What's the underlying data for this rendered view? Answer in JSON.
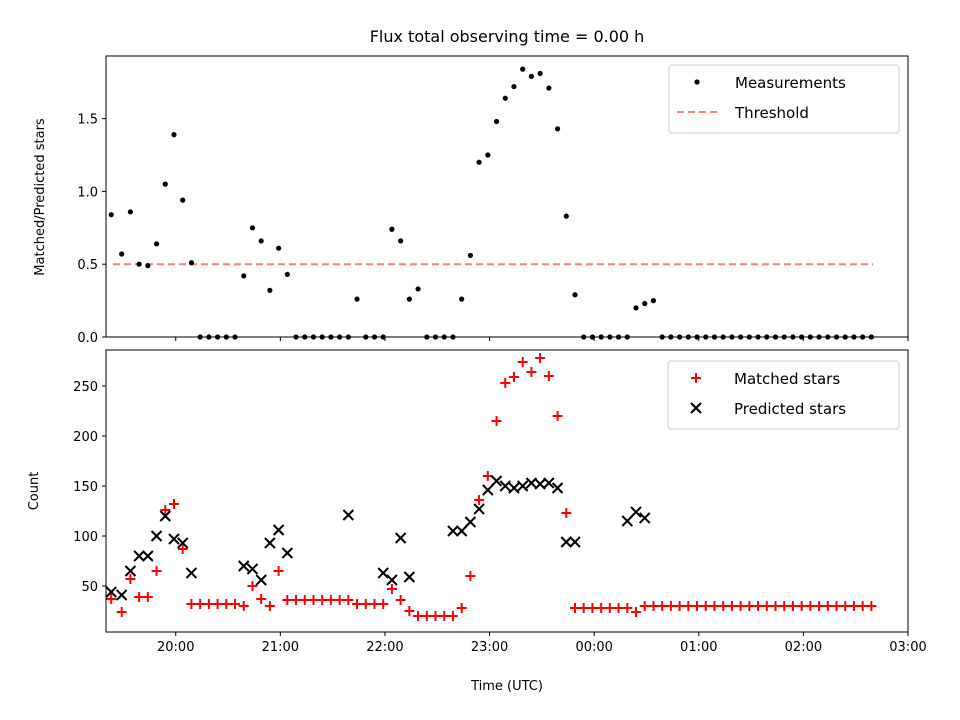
{
  "figure": {
    "title": "Flux total observing time = 0.00 h",
    "xlabel": "Time (UTC)"
  },
  "colors": {
    "measurements": "#000000",
    "threshold": "#ff7f7f",
    "matched": "#ff0000",
    "predicted": "#000000"
  },
  "chart_data": [
    {
      "type": "scatter",
      "panel": "top",
      "ylabel": "Matched/Predicted stars",
      "xlim": [
        "19:20",
        "03:00"
      ],
      "ylim": [
        0,
        1.93
      ],
      "yticks": [
        "0.0",
        "0.5",
        "1.0",
        "1.5"
      ],
      "xticks": [
        "20:00",
        "21:00",
        "22:00",
        "23:00",
        "00:00",
        "01:00",
        "02:00",
        "03:00"
      ],
      "xtick_labels_shown": false,
      "legend": {
        "placement": "top-right",
        "entries": [
          "Measurements",
          "Threshold"
        ]
      },
      "threshold": {
        "name": "Threshold",
        "value": 0.5,
        "x": [
          "19:24",
          "02:40"
        ]
      },
      "series": [
        {
          "name": "Measurements",
          "marker": "dot",
          "x": [
            "19:23",
            "19:29",
            "19:34",
            "19:39",
            "19:44",
            "19:49",
            "19:54",
            "19:59",
            "20:04",
            "20:09",
            "20:14",
            "20:19",
            "20:24",
            "20:29",
            "20:34",
            "20:39",
            "20:44",
            "20:49",
            "20:54",
            "20:59",
            "21:04",
            "21:09",
            "21:14",
            "21:19",
            "21:24",
            "21:29",
            "21:34",
            "21:39",
            "21:44",
            "21:49",
            "21:54",
            "21:59",
            "22:04",
            "22:09",
            "22:14",
            "22:19",
            "22:24",
            "22:29",
            "22:34",
            "22:39",
            "22:44",
            "22:49",
            "22:54",
            "22:59",
            "23:04",
            "23:09",
            "23:14",
            "23:19",
            "23:24",
            "23:29",
            "23:34",
            "23:39",
            "23:44",
            "23:49",
            "23:54",
            "23:59",
            "00:04",
            "00:09",
            "00:14",
            "00:19",
            "00:24",
            "00:29",
            "00:34",
            "00:39",
            "00:44",
            "00:49",
            "00:54",
            "00:59",
            "01:04",
            "01:09",
            "01:14",
            "01:19",
            "01:24",
            "01:29",
            "01:34",
            "01:39",
            "01:44",
            "01:49",
            "01:54",
            "01:59",
            "02:04",
            "02:09",
            "02:14",
            "02:19",
            "02:24",
            "02:29",
            "02:34",
            "02:39"
          ],
          "y": [
            0.84,
            0.57,
            0.86,
            0.5,
            0.49,
            0.64,
            1.05,
            1.39,
            0.94,
            0.51,
            0,
            0,
            0,
            0,
            0,
            0.42,
            0.75,
            0.66,
            0.32,
            0.61,
            0.43,
            0,
            0,
            0,
            0,
            0,
            0,
            0,
            0.26,
            0,
            0,
            0,
            0.74,
            0.66,
            0.26,
            0.33,
            0,
            0,
            0,
            0,
            0.26,
            0.56,
            1.2,
            1.25,
            1.48,
            1.64,
            1.72,
            1.84,
            1.79,
            1.81,
            1.71,
            1.43,
            0.83,
            0.29,
            0,
            0,
            0,
            0,
            0,
            0,
            0.2,
            0.23,
            0.25,
            0,
            0,
            0,
            0,
            0,
            0,
            0,
            0,
            0,
            0,
            0,
            0,
            0,
            0,
            0,
            0,
            0,
            0,
            0,
            0,
            0,
            0,
            0,
            0,
            0
          ]
        }
      ]
    },
    {
      "type": "scatter",
      "panel": "bottom",
      "ylabel": "Count",
      "xlim": [
        "19:20",
        "03:00"
      ],
      "ylim": [
        4,
        286
      ],
      "yticks": [
        "50",
        "100",
        "150",
        "200",
        "250"
      ],
      "xticks": [
        "20:00",
        "21:00",
        "22:00",
        "23:00",
        "00:00",
        "01:00",
        "02:00",
        "03:00"
      ],
      "legend": {
        "placement": "top-right",
        "entries": [
          "Matched stars",
          "Predicted stars"
        ]
      },
      "series": [
        {
          "name": "Matched stars",
          "marker": "plus",
          "x": [
            "19:23",
            "19:29",
            "19:34",
            "19:39",
            "19:44",
            "19:49",
            "19:54",
            "19:59",
            "20:04",
            "20:09",
            "20:14",
            "20:19",
            "20:24",
            "20:29",
            "20:34",
            "20:39",
            "20:44",
            "20:49",
            "20:54",
            "20:59",
            "21:04",
            "21:09",
            "21:14",
            "21:19",
            "21:24",
            "21:29",
            "21:34",
            "21:39",
            "21:44",
            "21:49",
            "21:54",
            "21:59",
            "22:04",
            "22:09",
            "22:14",
            "22:19",
            "22:24",
            "22:29",
            "22:34",
            "22:39",
            "22:44",
            "22:49",
            "22:54",
            "22:59",
            "23:04",
            "23:09",
            "23:14",
            "23:19",
            "23:24",
            "23:29",
            "23:34",
            "23:39",
            "23:44",
            "23:49",
            "23:54",
            "23:59",
            "00:04",
            "00:09",
            "00:14",
            "00:19",
            "00:24",
            "00:29",
            "00:34",
            "00:39",
            "00:44",
            "00:49",
            "00:54",
            "00:59",
            "01:04",
            "01:09",
            "01:14",
            "01:19",
            "01:24",
            "01:29",
            "01:34",
            "01:39",
            "01:44",
            "01:49",
            "01:54",
            "01:59",
            "02:04",
            "02:09",
            "02:14",
            "02:19",
            "02:24",
            "02:29",
            "02:34",
            "02:39"
          ],
          "y": [
            37,
            24,
            57,
            39,
            39,
            65,
            126,
            132,
            87,
            32,
            32,
            32,
            32,
            32,
            32,
            30,
            50,
            37,
            30,
            65,
            36,
            36,
            36,
            36,
            36,
            36,
            36,
            36,
            32,
            32,
            32,
            32,
            47,
            36,
            25,
            20,
            20,
            20,
            20,
            20,
            28,
            60,
            136,
            160,
            215,
            253,
            259,
            274,
            264,
            278,
            260,
            220,
            123,
            28,
            28,
            28,
            28,
            28,
            28,
            28,
            24,
            30,
            30,
            30,
            30,
            30,
            30,
            30,
            30,
            30,
            30,
            30,
            30,
            30,
            30,
            30,
            30,
            30,
            30,
            30,
            30,
            30,
            30,
            30,
            30,
            30,
            30,
            30
          ]
        },
        {
          "name": "Predicted stars",
          "marker": "x",
          "x": [
            "19:23",
            "19:29",
            "19:34",
            "19:39",
            "19:44",
            "19:49",
            "19:54",
            "19:59",
            "20:04",
            "20:09",
            "20:39",
            "20:44",
            "20:49",
            "20:54",
            "20:59",
            "21:04",
            "21:39",
            "21:59",
            "22:04",
            "22:09",
            "22:14",
            "22:39",
            "22:44",
            "22:49",
            "22:54",
            "22:59",
            "23:04",
            "23:09",
            "23:14",
            "23:19",
            "23:24",
            "23:29",
            "23:34",
            "23:39",
            "23:44",
            "23:49",
            "00:19",
            "00:24",
            "00:29"
          ],
          "y": [
            44,
            41,
            65,
            80,
            80,
            100,
            120,
            97,
            93,
            63,
            70,
            67,
            56,
            93,
            106,
            83,
            121,
            63,
            56,
            98,
            59,
            105,
            105,
            114,
            127,
            146,
            155,
            150,
            148,
            150,
            153,
            152,
            153,
            148,
            94,
            94,
            115,
            124,
            118
          ]
        }
      ]
    }
  ]
}
